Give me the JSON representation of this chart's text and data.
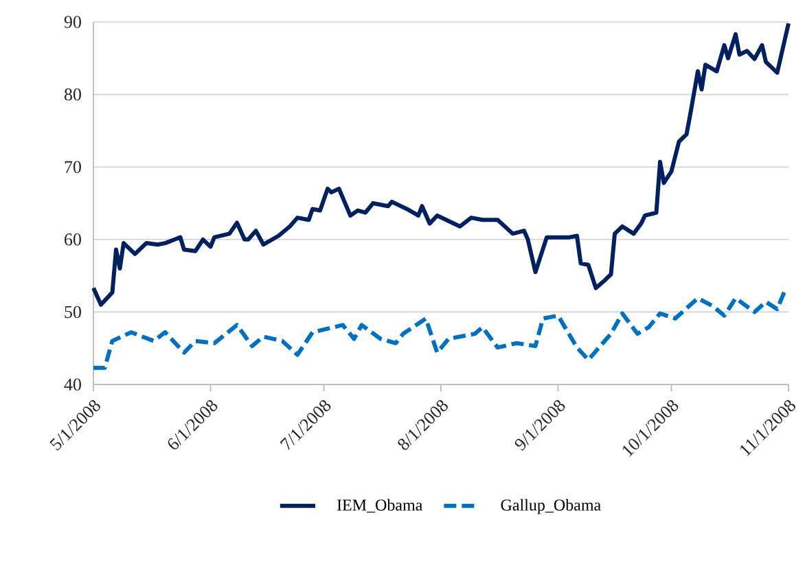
{
  "chart_data": {
    "type": "line",
    "xlim": [
      "2008-05-01",
      "2008-11-01"
    ],
    "xticks": [
      {
        "value": "2008-05-01",
        "label": "5/1/2008"
      },
      {
        "value": "2008-06-01",
        "label": "6/1/2008"
      },
      {
        "value": "2008-07-01",
        "label": "7/1/2008"
      },
      {
        "value": "2008-08-01",
        "label": "8/1/2008"
      },
      {
        "value": "2008-09-01",
        "label": "9/1/2008"
      },
      {
        "value": "2008-10-01",
        "label": "10/1/2008"
      },
      {
        "value": "2008-11-01",
        "label": "11/1/2008"
      }
    ],
    "ylim": [
      40,
      90
    ],
    "yticks": [
      40,
      50,
      60,
      70,
      80,
      90
    ],
    "grid": "y",
    "legend": "bottom",
    "series": [
      {
        "name": "IEM_Obama",
        "color": "#002060",
        "line_style": "solid",
        "x": [
          "2008-05-01",
          "2008-05-03",
          "2008-05-06",
          "2008-05-07",
          "2008-05-08",
          "2008-05-09",
          "2008-05-12",
          "2008-05-15",
          "2008-05-18",
          "2008-05-20",
          "2008-05-24",
          "2008-05-25",
          "2008-05-28",
          "2008-05-30",
          "2008-06-01",
          "2008-06-02",
          "2008-06-06",
          "2008-06-08",
          "2008-06-10",
          "2008-06-11",
          "2008-06-13",
          "2008-06-15",
          "2008-06-19",
          "2008-06-22",
          "2008-06-24",
          "2008-06-27",
          "2008-06-28",
          "2008-06-30",
          "2008-07-02",
          "2008-07-03",
          "2008-07-05",
          "2008-07-08",
          "2008-07-10",
          "2008-07-12",
          "2008-07-14",
          "2008-07-18",
          "2008-07-19",
          "2008-07-23",
          "2008-07-26",
          "2008-07-27",
          "2008-07-29",
          "2008-07-31",
          "2008-08-06",
          "2008-08-09",
          "2008-08-12",
          "2008-08-16",
          "2008-08-20",
          "2008-08-23",
          "2008-08-24",
          "2008-08-26",
          "2008-08-29",
          "2008-09-04",
          "2008-09-06",
          "2008-09-07",
          "2008-09-09",
          "2008-09-11",
          "2008-09-13",
          "2008-09-15",
          "2008-09-16",
          "2008-09-18",
          "2008-09-21",
          "2008-09-23",
          "2008-09-24",
          "2008-09-27",
          "2008-09-28",
          "2008-09-29",
          "2008-10-01",
          "2008-10-03",
          "2008-10-05",
          "2008-10-06",
          "2008-10-08",
          "2008-10-09",
          "2008-10-10",
          "2008-10-13",
          "2008-10-15",
          "2008-10-16",
          "2008-10-18",
          "2008-10-19",
          "2008-10-21",
          "2008-10-23",
          "2008-10-25",
          "2008-10-26",
          "2008-10-29",
          "2008-11-01"
        ],
        "values": [
          53.3,
          51,
          52.7,
          58.6,
          56,
          59.5,
          58,
          59.5,
          59.3,
          59.5,
          60.3,
          58.6,
          58.4,
          60,
          59,
          60.3,
          60.8,
          62.3,
          60,
          60,
          61.2,
          59.3,
          60.5,
          61.8,
          63,
          62.7,
          64.2,
          64,
          67,
          66.5,
          67,
          63.3,
          64,
          63.7,
          65,
          64.6,
          65.2,
          64.2,
          63.3,
          64.6,
          62.2,
          63.3,
          61.8,
          63,
          62.7,
          62.7,
          60.8,
          61.2,
          60,
          55.5,
          60.3,
          60.3,
          60.5,
          56.7,
          56.5,
          53.3,
          54.2,
          55.2,
          60.8,
          61.8,
          60.8,
          62.2,
          63.3,
          63.7,
          70.7,
          67.8,
          69.4,
          73.5,
          74.5,
          77.3,
          83.2,
          80.7,
          84.1,
          83.2,
          86.8,
          85,
          88.3,
          85.5,
          86,
          84.9,
          86.8,
          84.5,
          83,
          89.8
        ]
      },
      {
        "name": "Gallup_Obama",
        "color": "#0070c0",
        "line_style": "dashed",
        "x": [
          "2008-05-01",
          "2008-05-04",
          "2008-05-06",
          "2008-05-11",
          "2008-05-17",
          "2008-05-20",
          "2008-05-25",
          "2008-05-28",
          "2008-06-02",
          "2008-06-08",
          "2008-06-12",
          "2008-06-15",
          "2008-06-20",
          "2008-06-24",
          "2008-06-28",
          "2008-07-06",
          "2008-07-09",
          "2008-07-11",
          "2008-07-16",
          "2008-07-20",
          "2008-07-22",
          "2008-07-28",
          "2008-07-31",
          "2008-08-03",
          "2008-08-10",
          "2008-08-12",
          "2008-08-16",
          "2008-08-21",
          "2008-08-26",
          "2008-08-28",
          "2008-09-01",
          "2008-09-06",
          "2008-09-09",
          "2008-09-15",
          "2008-09-18",
          "2008-09-22",
          "2008-09-25",
          "2008-09-28",
          "2008-10-02",
          "2008-10-08",
          "2008-10-12",
          "2008-10-15",
          "2008-10-18",
          "2008-10-23",
          "2008-10-26",
          "2008-10-29",
          "2008-10-31"
        ],
        "values": [
          42.3,
          42.3,
          46,
          47.2,
          46,
          47.2,
          44.4,
          46,
          45.7,
          48.2,
          45.3,
          46.6,
          46,
          44.1,
          47.2,
          48.2,
          46.3,
          48.2,
          46.3,
          45.7,
          47,
          49.1,
          44.4,
          46.3,
          47,
          47.9,
          45.1,
          45.7,
          45.3,
          49.1,
          49.5,
          45.1,
          43.4,
          47,
          49.8,
          47,
          47.9,
          49.8,
          49.1,
          51.9,
          50.8,
          49.5,
          51.9,
          50,
          51.4,
          50.4,
          52.9
        ]
      }
    ]
  }
}
